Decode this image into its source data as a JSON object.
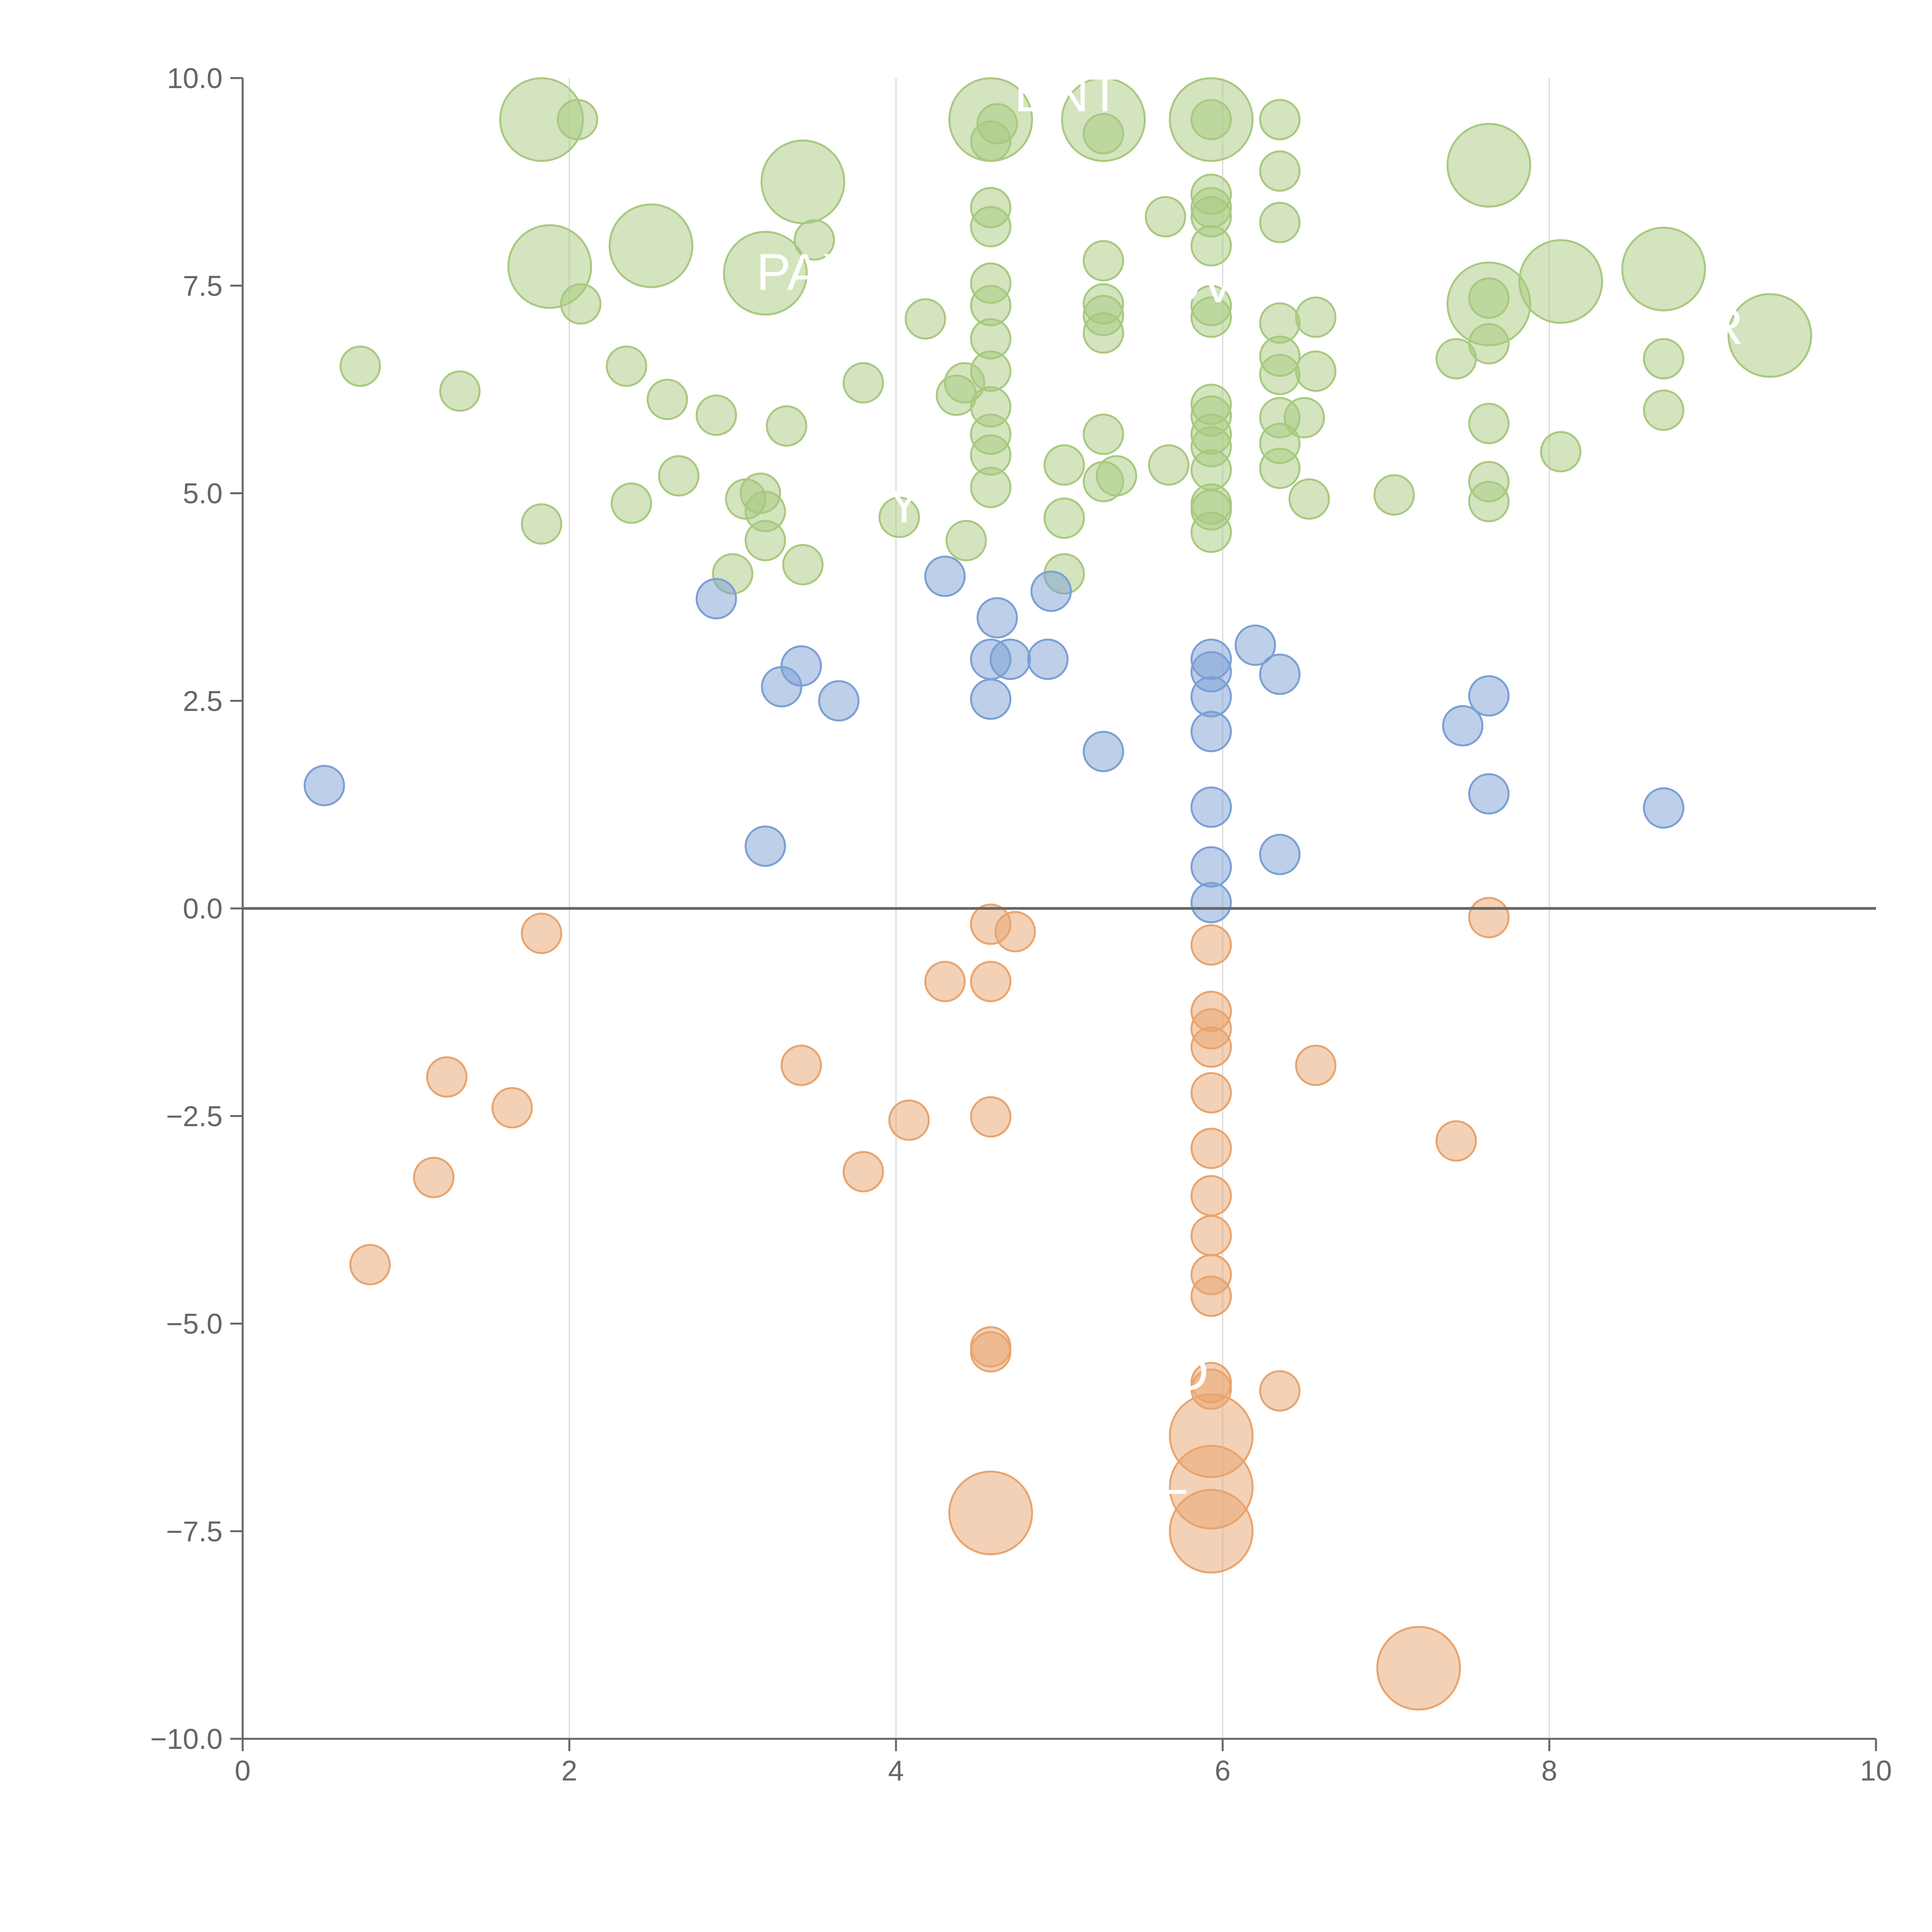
{
  "chart_data": {
    "type": "scatter",
    "title": "",
    "xlabel": "",
    "ylabel": "",
    "xlim": [
      0,
      10
    ],
    "ylim": [
      -10,
      10
    ],
    "x_ticks": [
      "0",
      "2",
      "4",
      "6",
      "8",
      "10"
    ],
    "y_ticks": [
      "10.0",
      "7.5",
      "5.0",
      "2.5",
      "0.0",
      "−2.5",
      "−5.0",
      "−7.5",
      "−10.0"
    ],
    "grid": "vertical",
    "zero_line": true,
    "colors": {
      "green": "#a8c97f",
      "blue": "#7b9fd4",
      "orange": "#e8a46e",
      "axis": "#666666",
      "grid": "#d9d9d9"
    },
    "size_legend": {
      "small": 1,
      "large": 2
    },
    "series": [
      {
        "name": "green",
        "points": [
          [
            0.72,
            6.53,
            1
          ],
          [
            1.33,
            6.23,
            1
          ],
          [
            1.83,
            4.63,
            1
          ],
          [
            2.05,
            9.5,
            1
          ],
          [
            2.07,
            7.28,
            1
          ],
          [
            2.35,
            6.53,
            1
          ],
          [
            2.38,
            4.88,
            1
          ],
          [
            2.6,
            6.13,
            1
          ],
          [
            2.67,
            5.21,
            1
          ],
          [
            2.9,
            5.94,
            1
          ],
          [
            3.0,
            4.03,
            1
          ],
          [
            3.08,
            4.93,
            1
          ],
          [
            3.17,
            5.0,
            1
          ],
          [
            3.2,
            4.78,
            1
          ],
          [
            3.2,
            4.43,
            1
          ],
          [
            3.33,
            5.81,
            1
          ],
          [
            3.43,
            4.14,
            1
          ],
          [
            3.5,
            8.05,
            1
          ],
          [
            3.8,
            6.33,
            1
          ],
          [
            4.18,
            7.1,
            1
          ],
          [
            4.37,
            6.18,
            1
          ],
          [
            4.42,
            6.33,
            1
          ],
          [
            4.43,
            4.43,
            1
          ],
          [
            4.58,
            9.24,
            1
          ],
          [
            4.58,
            8.44,
            1
          ],
          [
            4.58,
            8.21,
            1
          ],
          [
            4.58,
            7.53,
            1
          ],
          [
            4.58,
            7.26,
            1
          ],
          [
            4.58,
            6.86,
            1
          ],
          [
            4.58,
            6.47,
            1
          ],
          [
            4.58,
            6.04,
            1
          ],
          [
            4.58,
            5.71,
            1
          ],
          [
            4.58,
            5.46,
            1
          ],
          [
            4.58,
            5.07,
            1
          ],
          [
            5.03,
            5.34,
            1
          ],
          [
            5.03,
            4.7,
            1
          ],
          [
            5.03,
            4.03,
            1
          ],
          [
            5.27,
            7.8,
            1
          ],
          [
            5.27,
            7.28,
            1
          ],
          [
            5.27,
            7.14,
            1
          ],
          [
            5.27,
            6.93,
            1
          ],
          [
            5.27,
            5.71,
            1
          ],
          [
            5.27,
            5.14,
            1
          ],
          [
            5.35,
            5.21,
            1
          ],
          [
            5.65,
            8.33,
            1
          ],
          [
            5.67,
            5.34,
            1
          ],
          [
            5.93,
            8.6,
            1
          ],
          [
            5.93,
            8.44,
            1
          ],
          [
            5.93,
            8.33,
            1
          ],
          [
            5.93,
            7.98,
            1
          ],
          [
            5.93,
            7.26,
            1
          ],
          [
            5.93,
            7.12,
            1
          ],
          [
            5.93,
            6.07,
            1
          ],
          [
            5.93,
            5.93,
            1
          ],
          [
            5.93,
            5.71,
            1
          ],
          [
            5.93,
            5.56,
            1
          ],
          [
            5.93,
            5.28,
            1
          ],
          [
            5.93,
            4.87,
            1
          ],
          [
            5.93,
            4.8,
            1
          ],
          [
            5.93,
            4.53,
            1
          ],
          [
            6.35,
            9.5,
            1
          ],
          [
            6.35,
            8.88,
            1
          ],
          [
            6.35,
            8.26,
            1
          ],
          [
            6.35,
            7.05,
            1
          ],
          [
            6.35,
            6.65,
            1
          ],
          [
            6.35,
            6.43,
            1
          ],
          [
            6.35,
            5.91,
            1
          ],
          [
            6.35,
            5.6,
            1
          ],
          [
            6.35,
            5.3,
            1
          ],
          [
            6.5,
            5.91,
            1
          ],
          [
            6.53,
            4.93,
            1
          ],
          [
            6.57,
            7.12,
            1
          ],
          [
            6.57,
            6.47,
            1
          ],
          [
            7.05,
            4.98,
            1
          ],
          [
            7.43,
            6.62,
            1
          ],
          [
            7.63,
            7.35,
            1
          ],
          [
            7.63,
            6.8,
            1
          ],
          [
            7.63,
            5.84,
            1
          ],
          [
            7.63,
            5.14,
            1
          ],
          [
            7.63,
            4.9,
            1
          ],
          [
            8.07,
            5.5,
            1
          ],
          [
            8.7,
            6.62,
            1
          ],
          [
            8.7,
            6.0,
            1
          ],
          [
            4.62,
            9.45,
            1
          ],
          [
            5.27,
            9.33,
            1
          ],
          [
            5.93,
            9.5,
            1
          ],
          [
            4.02,
            4.71,
            1
          ],
          [
            1.83,
            9.5,
            2
          ],
          [
            1.88,
            7.73,
            2
          ],
          [
            2.5,
            7.98,
            2
          ],
          [
            3.2,
            7.65,
            2
          ],
          [
            3.43,
            8.75,
            2
          ],
          [
            4.58,
            9.5,
            2
          ],
          [
            5.27,
            9.5,
            2
          ],
          [
            5.93,
            9.5,
            2
          ],
          [
            7.63,
            8.95,
            2
          ],
          [
            7.63,
            7.28,
            2
          ],
          [
            8.07,
            7.55,
            2
          ],
          [
            8.7,
            7.7,
            2
          ],
          [
            9.35,
            6.9,
            2
          ]
        ]
      },
      {
        "name": "blue",
        "points": [
          [
            0.5,
            1.48,
            1
          ],
          [
            2.9,
            3.73,
            1
          ],
          [
            3.2,
            0.75,
            1
          ],
          [
            3.3,
            2.67,
            1
          ],
          [
            3.42,
            2.92,
            1
          ],
          [
            3.65,
            2.5,
            1
          ],
          [
            4.3,
            4.0,
            1
          ],
          [
            4.58,
            3.0,
            1
          ],
          [
            4.58,
            2.52,
            1
          ],
          [
            4.62,
            3.5,
            1
          ],
          [
            4.7,
            3.0,
            1
          ],
          [
            4.93,
            3.0,
            1
          ],
          [
            4.95,
            3.82,
            1
          ],
          [
            5.27,
            1.89,
            1
          ],
          [
            5.93,
            3.0,
            1
          ],
          [
            5.93,
            2.85,
            1
          ],
          [
            5.93,
            2.55,
            1
          ],
          [
            5.93,
            2.13,
            1
          ],
          [
            5.93,
            1.22,
            1
          ],
          [
            5.93,
            0.5,
            1
          ],
          [
            5.93,
            0.07,
            1
          ],
          [
            6.2,
            3.17,
            1
          ],
          [
            6.35,
            2.82,
            1
          ],
          [
            6.35,
            0.65,
            1
          ],
          [
            7.47,
            2.2,
            1
          ],
          [
            7.63,
            2.56,
            1
          ],
          [
            7.63,
            1.38,
            1
          ],
          [
            8.7,
            1.21,
            1
          ]
        ]
      },
      {
        "name": "orange",
        "points": [
          [
            0.78,
            -4.29,
            1
          ],
          [
            1.17,
            -3.24,
            1
          ],
          [
            1.25,
            -2.03,
            1
          ],
          [
            1.65,
            -2.4,
            1
          ],
          [
            1.83,
            -0.3,
            1
          ],
          [
            3.42,
            -1.89,
            1
          ],
          [
            3.8,
            -3.17,
            1
          ],
          [
            4.08,
            -2.55,
            1
          ],
          [
            4.3,
            -0.88,
            1
          ],
          [
            4.58,
            -0.19,
            1
          ],
          [
            4.58,
            -0.88,
            1
          ],
          [
            4.58,
            -2.51,
            1
          ],
          [
            4.58,
            -5.28,
            1
          ],
          [
            4.58,
            -5.34,
            1
          ],
          [
            4.73,
            -0.28,
            1
          ],
          [
            5.93,
            -0.44,
            1
          ],
          [
            5.93,
            -1.24,
            1
          ],
          [
            5.93,
            -1.45,
            1
          ],
          [
            5.93,
            -1.67,
            1
          ],
          [
            5.93,
            -2.22,
            1
          ],
          [
            5.93,
            -2.89,
            1
          ],
          [
            5.93,
            -3.46,
            1
          ],
          [
            5.93,
            -3.94,
            1
          ],
          [
            5.93,
            -4.41,
            1
          ],
          [
            5.93,
            -4.67,
            1
          ],
          [
            5.93,
            -5.71,
            1
          ],
          [
            5.93,
            -5.79,
            1
          ],
          [
            6.35,
            -5.81,
            1
          ],
          [
            6.57,
            -1.89,
            1
          ],
          [
            7.43,
            -2.8,
            1
          ],
          [
            7.63,
            -0.11,
            1
          ],
          [
            4.58,
            -7.28,
            2
          ],
          [
            5.93,
            -6.35,
            2
          ],
          [
            5.93,
            -6.97,
            2
          ],
          [
            5.93,
            -7.5,
            2
          ],
          [
            7.2,
            -9.15,
            2
          ]
        ]
      }
    ],
    "annotations": [
      "DNT",
      "PAX",
      "OV",
      "OR",
      "Y",
      "D",
      "L"
    ]
  }
}
